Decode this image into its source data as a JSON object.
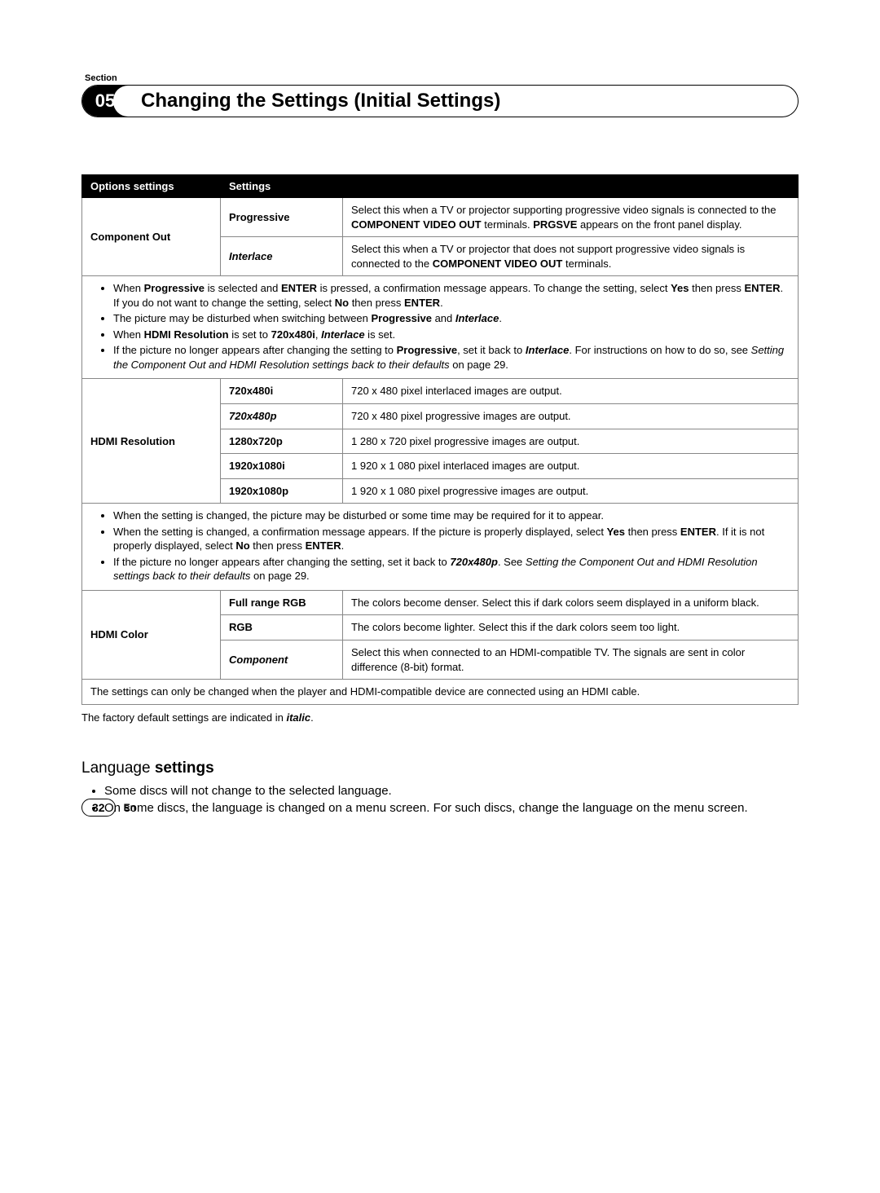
{
  "section_label": "Section",
  "chapter_number": "05",
  "chapter_title": "Changing the Settings (Initial Settings)",
  "table": {
    "header_options": "Options settings",
    "header_settings": "Settings",
    "component_out": {
      "label": "Component Out",
      "progressive": {
        "name": "Progressive",
        "desc_prefix": "Select this when a TV or projector supporting progressive video signals is connected to the ",
        "desc_bold1": "COMPONENT VIDEO OUT",
        "desc_mid": " terminals. ",
        "desc_bold2": "PRGSVE",
        "desc_suffix": " appears on the front panel display."
      },
      "interlace": {
        "name": "Interlace",
        "desc_prefix": "Select this when a TV or projector that does not support progressive video signals is connected to the ",
        "desc_bold": "COMPONENT VIDEO OUT",
        "desc_suffix": " terminals."
      }
    },
    "note1": {
      "li1_a": "When ",
      "li1_b1": "Progressive",
      "li1_c": " is selected and ",
      "li1_b2": "ENTER",
      "li1_d": " is pressed, a confirmation message appears. To change the setting, select ",
      "li1_b3": "Yes",
      "li1_e": " then press ",
      "li1_b4": "ENTER",
      "li1_f": ". If you do not want to change the setting, select ",
      "li1_b5": "No",
      "li1_g": " then press ",
      "li1_b6": "ENTER",
      "li1_h": ".",
      "li2_a": "The picture may be disturbed when switching between ",
      "li2_b1": "Progressive",
      "li2_c": " and ",
      "li2_b2": "Interlace",
      "li2_d": ".",
      "li3_a": "When ",
      "li3_b1": "HDMI Resolution",
      "li3_c": " is set to ",
      "li3_b2": "720x480i",
      "li3_d": ", ",
      "li3_b3": "Interlace",
      "li3_e": " is set.",
      "li4_a": "If the picture no longer appears after changing the setting to ",
      "li4_b1": "Progressive",
      "li4_c": ", set it back to ",
      "li4_b2": "Interlace",
      "li4_d": ". For instructions on how to do so, see ",
      "li4_i": "Setting the Component Out and HDMI Resolution settings back to their defaults",
      "li4_e": " on page 29."
    },
    "hdmi_res": {
      "label": "HDMI Resolution",
      "r1": {
        "name": "720x480i",
        "desc": "720 x 480 pixel interlaced images are output."
      },
      "r2": {
        "name": "720x480p",
        "desc": "720 x 480 pixel progressive images are output."
      },
      "r3": {
        "name": "1280x720p",
        "desc": "1 280 x 720 pixel progressive images are output."
      },
      "r4": {
        "name": "1920x1080i",
        "desc": "1 920 x 1 080 pixel interlaced images are output."
      },
      "r5": {
        "name": "1920x1080p",
        "desc": "1 920 x 1 080 pixel progressive images are output."
      }
    },
    "note2": {
      "li1": "When the setting is changed, the picture may be disturbed or some time may be required for it to appear.",
      "li2_a": "When the setting is changed, a confirmation message appears. If the picture is properly displayed, select ",
      "li2_b1": "Yes",
      "li2_c": " then press ",
      "li2_b2": "ENTER",
      "li2_d": ". If it is not properly displayed, select ",
      "li2_b3": "No",
      "li2_e": " then press ",
      "li2_b4": "ENTER",
      "li2_f": ".",
      "li3_a": "If the picture no longer appears after changing the setting, set it back to ",
      "li3_b1": "720x480p",
      "li3_c": ". See ",
      "li3_i": "Setting the Component Out and HDMI Resolution settings back to their defaults",
      "li3_d": " on page 29."
    },
    "hdmi_color": {
      "label": "HDMI Color",
      "full": {
        "name": "Full range RGB",
        "desc": "The colors become denser. Select this if dark colors seem displayed in a uniform black."
      },
      "rgb": {
        "name": "RGB",
        "desc": "The colors become lighter. Select this if the dark colors seem too light."
      },
      "component": {
        "name": "Component",
        "desc": "Select this when connected to an HDMI-compatible TV. The signals are sent in color difference (8-bit) format."
      }
    },
    "note3": "The settings can only be changed when the player and HDMI-compatible device are connected using an HDMI cable."
  },
  "caption_prefix": "The factory default settings are indicated in ",
  "caption_italic": "italic",
  "caption_suffix": ".",
  "lang_heading_normal": "Language",
  "lang_heading_bold": " settings",
  "lang_bullets": {
    "b1": "Some discs will not change to the selected language.",
    "b2": "On some discs, the language is changed on a menu screen. For such discs, change the language on the menu screen."
  },
  "page_number": "32",
  "lang_code": "En"
}
